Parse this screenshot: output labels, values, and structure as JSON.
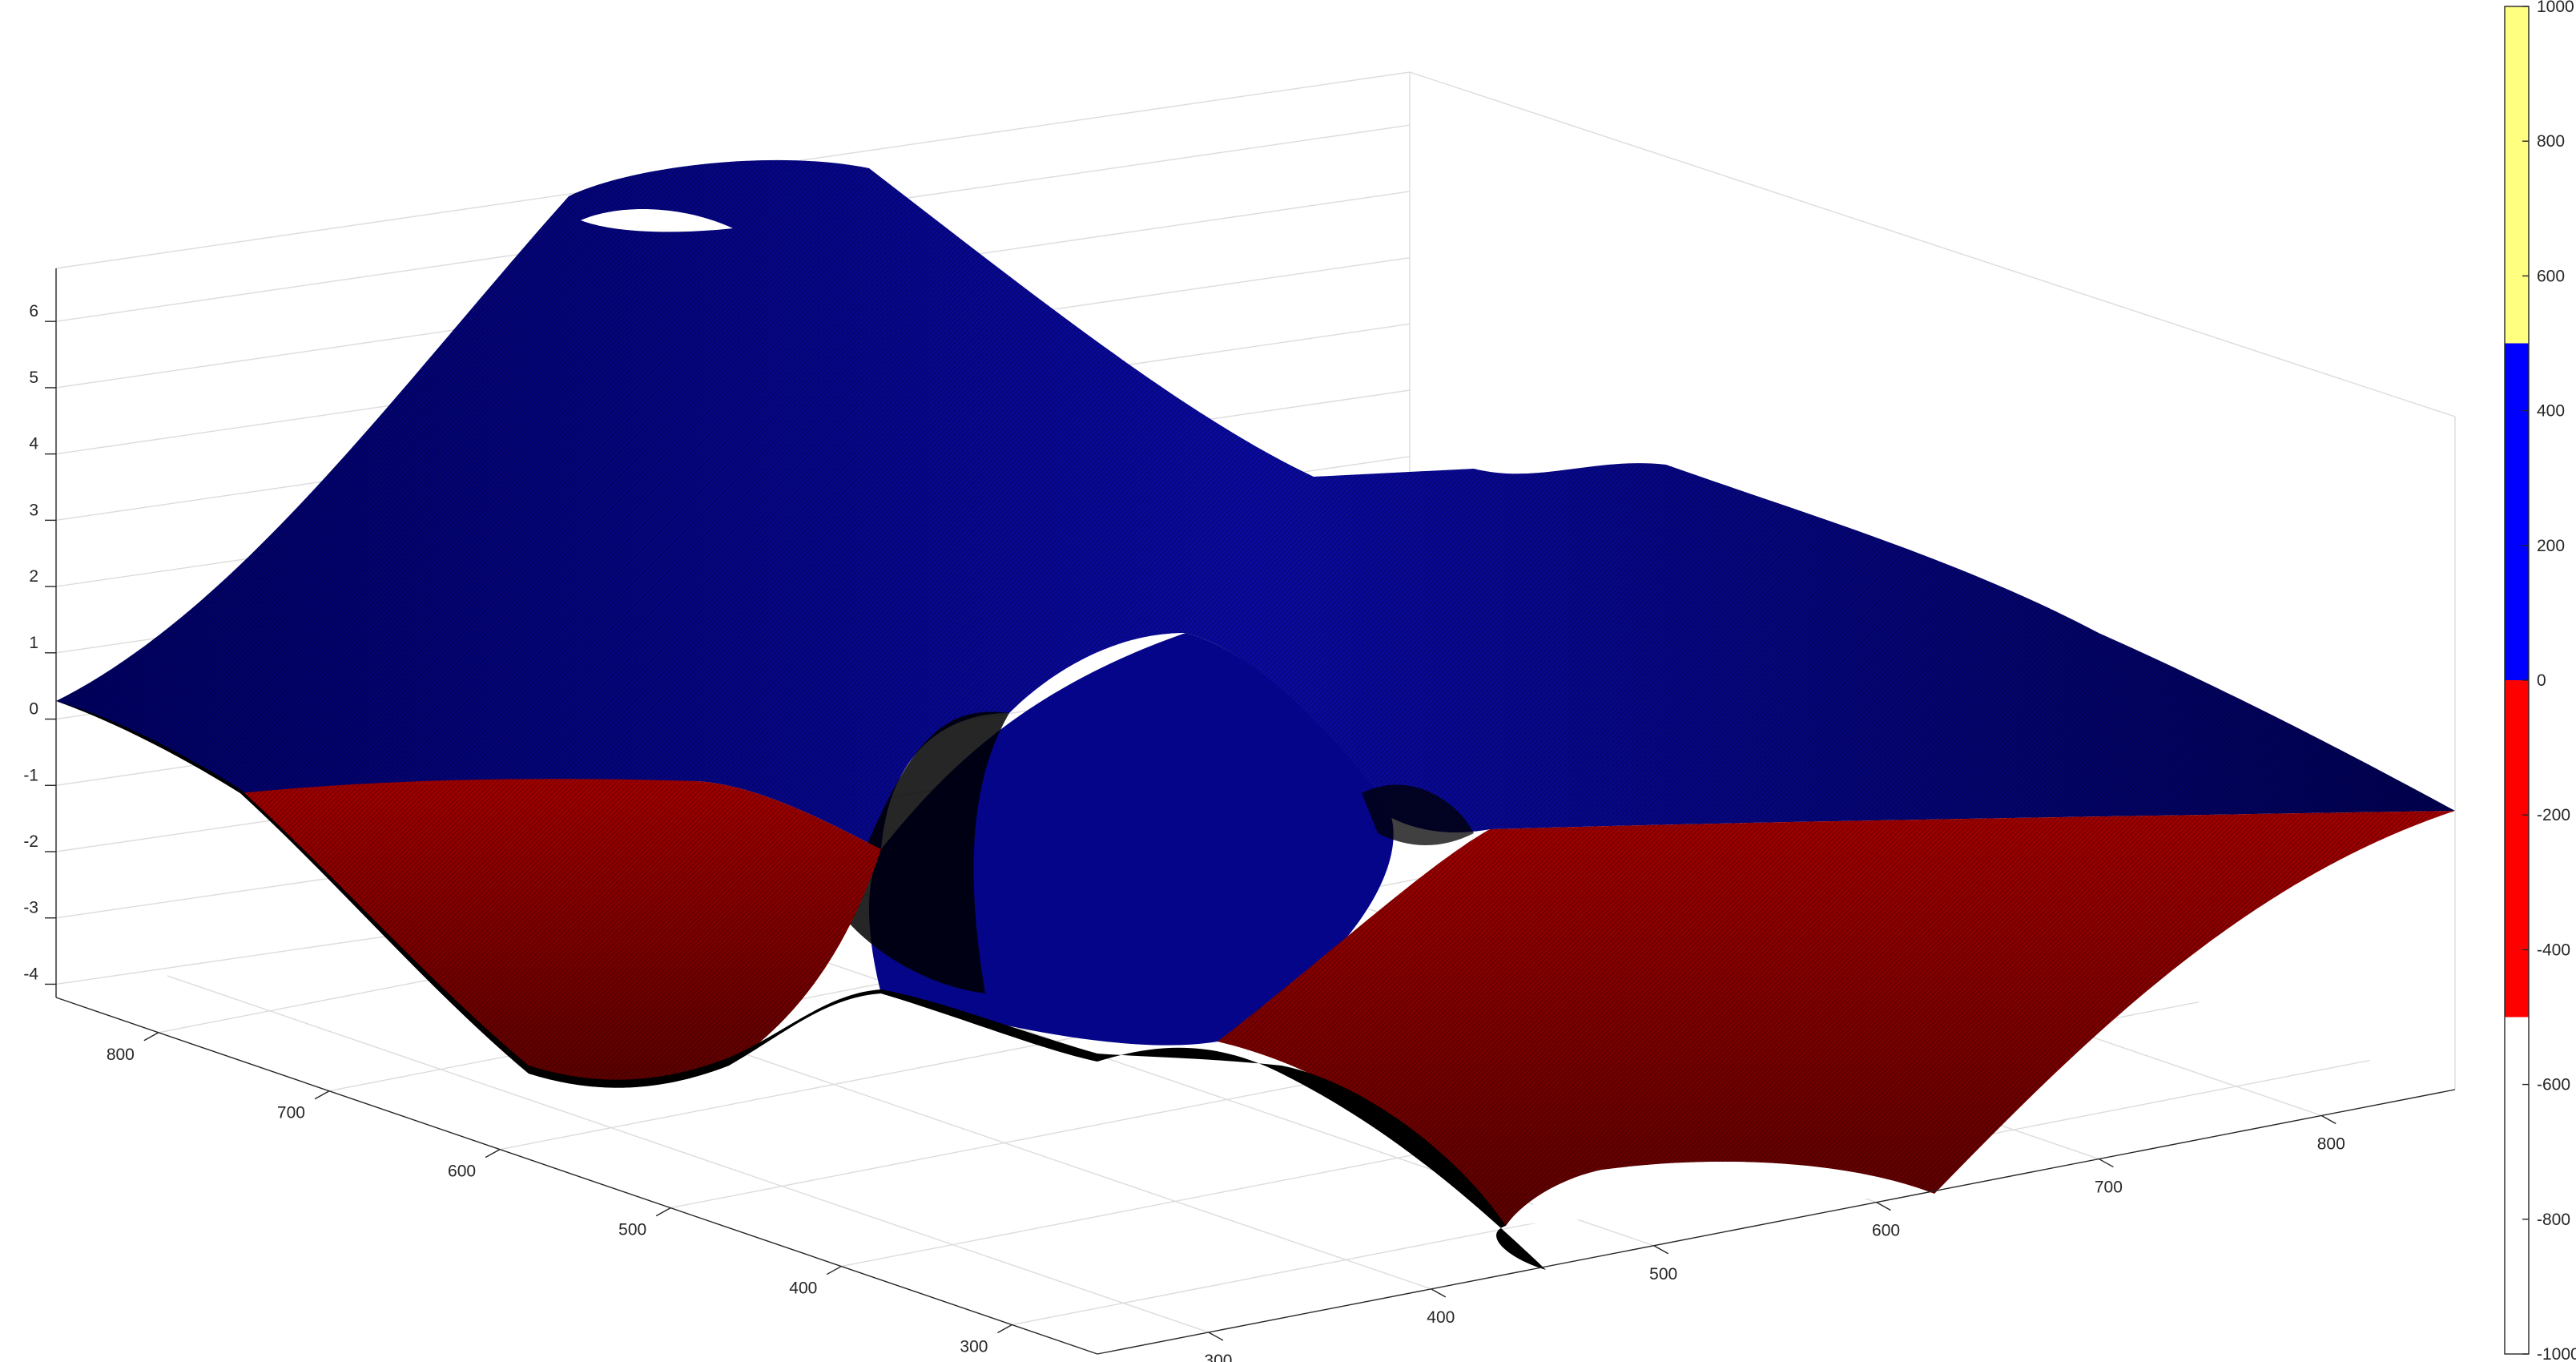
{
  "chart_data": {
    "type": "surface",
    "z_ticks": [
      6,
      5,
      4,
      3,
      2,
      1,
      0,
      -1,
      -2,
      -3,
      -4
    ],
    "x_ticks": [
      300,
      400,
      500,
      600,
      700,
      800
    ],
    "y_ticks": [
      800,
      700,
      600,
      500,
      400,
      300
    ],
    "zlim": [
      -4.2,
      6.8
    ],
    "grid": true,
    "surface_bands": [
      {
        "label": "z >= 0",
        "color": "#0a0a9c"
      },
      {
        "label": "z < 0",
        "color": "#9a0000"
      }
    ],
    "colorbar": {
      "ticks": [
        1000,
        800,
        600,
        400,
        200,
        0,
        -200,
        -400,
        -600,
        -800,
        -1000
      ],
      "range": [
        -1000,
        1000
      ],
      "segments": [
        {
          "from": 500,
          "to": 1000,
          "color": "#ffff80"
        },
        {
          "from": 0,
          "to": 500,
          "color": "#0000ff"
        },
        {
          "from": -500,
          "to": 0,
          "color": "#ff0000"
        },
        {
          "from": -1000,
          "to": -500,
          "color": "#ffffff"
        }
      ]
    }
  }
}
